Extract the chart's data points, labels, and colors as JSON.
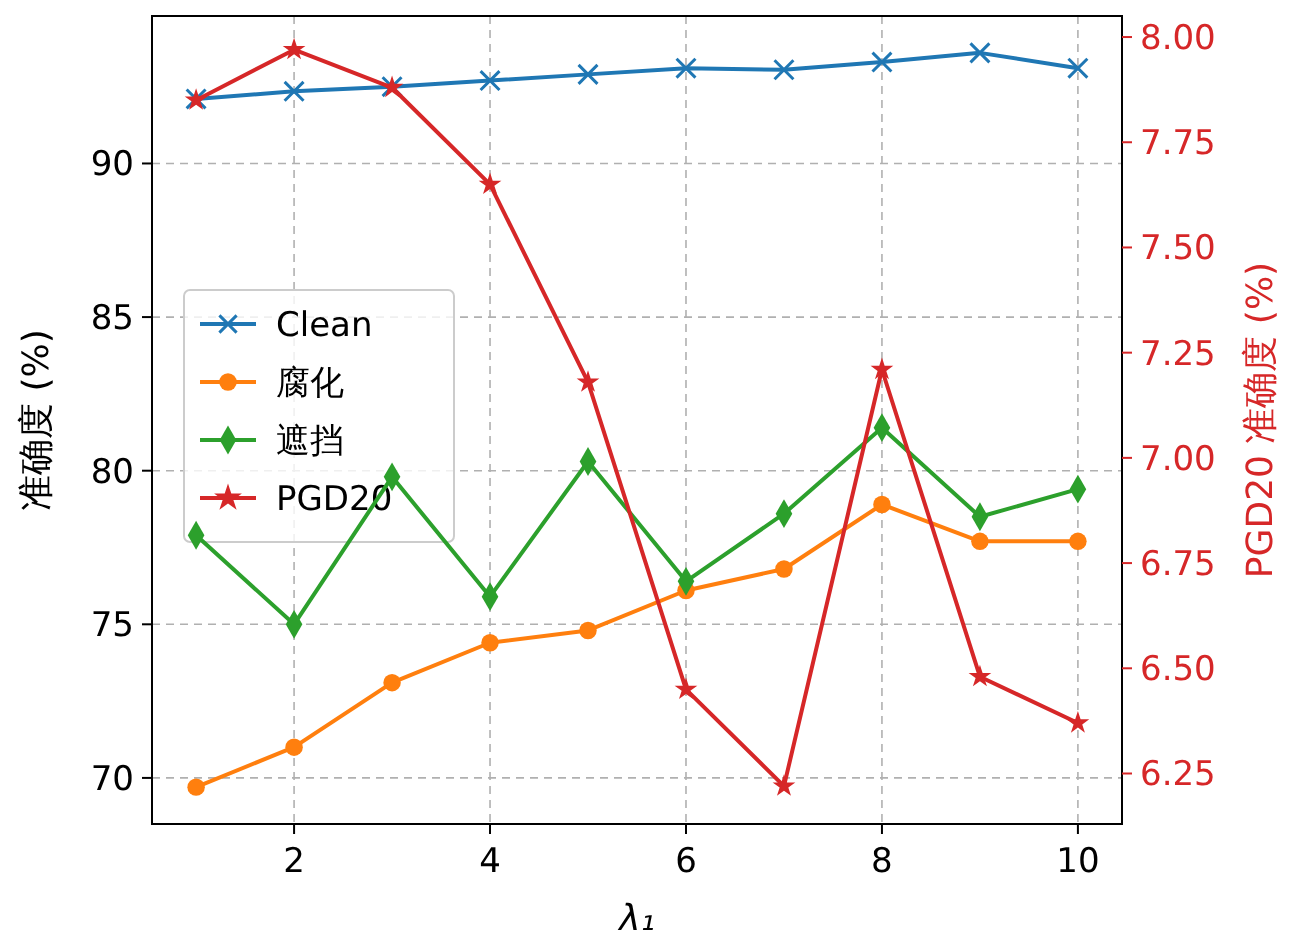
{
  "chart_data": {
    "type": "line",
    "xlabel": "λ₁",
    "ylabel": "准确度 (%)",
    "y2label": "PGD20 准确度 (%)",
    "x": [
      1,
      2,
      3,
      4,
      5,
      6,
      7,
      8,
      9,
      10
    ],
    "xlim": [
      0.55,
      10.45
    ],
    "xticks": [
      2,
      4,
      6,
      8,
      10
    ],
    "ylim": [
      68.5,
      94.8
    ],
    "yticks": [
      70,
      75,
      80,
      85,
      90
    ],
    "y2lim": [
      6.13,
      8.05
    ],
    "y2ticks": [
      {
        "value": 6.25,
        "label": "6.25"
      },
      {
        "value": 6.5,
        "label": "6.50"
      },
      {
        "value": 6.75,
        "label": "6.75"
      },
      {
        "value": 7,
        "label": "7.00"
      },
      {
        "value": 7.25,
        "label": "7.25"
      },
      {
        "value": 7.5,
        "label": "7.50"
      },
      {
        "value": 7.75,
        "label": "7.75"
      },
      {
        "value": 8,
        "label": "8.00"
      }
    ],
    "grid": true,
    "legend": "left",
    "line_style": "solid",
    "series": [
      {
        "name": "Clean",
        "color": "#1f77b4",
        "marker": "cross",
        "values": [
          92.1,
          92.35,
          92.5,
          92.7,
          92.9,
          93.1,
          93.05,
          93.3,
          93.6,
          93.1
        ]
      },
      {
        "name": "腐化",
        "color": "#ff7f0e",
        "marker": "circle",
        "values": [
          69.7,
          71.0,
          73.1,
          74.4,
          74.8,
          76.1,
          76.8,
          78.9,
          77.7,
          77.7
        ]
      },
      {
        "name": "遮挡",
        "color": "#2ca02c",
        "marker": "diamond",
        "values": [
          77.9,
          75.0,
          79.8,
          75.9,
          80.3,
          76.4,
          78.6,
          81.4,
          78.5,
          79.4
        ]
      },
      {
        "name": "PGD20",
        "color": "#d62728",
        "marker": "star",
        "axis": "y2",
        "values": [
          7.85,
          7.97,
          7.88,
          7.65,
          7.18,
          6.45,
          6.22,
          7.21,
          6.48,
          6.37
        ]
      }
    ]
  }
}
